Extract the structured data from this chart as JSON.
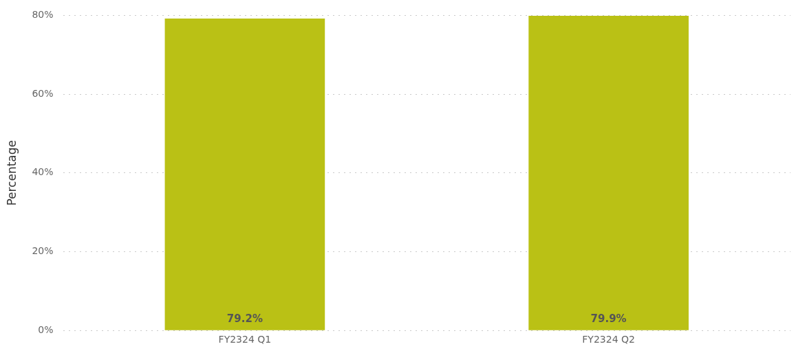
{
  "chart_data": {
    "type": "bar",
    "ylabel": "Percentage",
    "categories": [
      "FY2324 Q1",
      "FY2324 Q2"
    ],
    "values": [
      79.2,
      79.9
    ],
    "color": "#bac115",
    "value_labels": [
      "79.2%",
      "79.9%"
    ],
    "ylim": [
      0,
      80
    ],
    "yticks": [
      {
        "value": 0,
        "label": "0%"
      },
      {
        "value": 20,
        "label": "20%"
      },
      {
        "value": 40,
        "label": "40%"
      },
      {
        "value": 60,
        "label": "60%"
      },
      {
        "value": 80,
        "label": "80%"
      }
    ],
    "grid": "y",
    "legend": false
  }
}
